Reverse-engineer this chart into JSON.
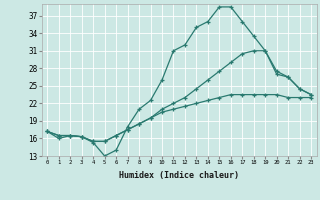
{
  "xlabel": "Humidex (Indice chaleur)",
  "ylabel": "",
  "bg_color": "#cce8e4",
  "line_color": "#2a7a70",
  "grid_color": "#ffffff",
  "xlim": [
    -0.5,
    23.5
  ],
  "ylim": [
    13,
    39
  ],
  "yticks": [
    13,
    16,
    19,
    22,
    25,
    28,
    31,
    34,
    37
  ],
  "xticks": [
    0,
    1,
    2,
    3,
    4,
    5,
    6,
    7,
    8,
    9,
    10,
    11,
    12,
    13,
    14,
    15,
    16,
    17,
    18,
    19,
    20,
    21,
    22,
    23
  ],
  "line1_x": [
    0,
    1,
    2,
    3,
    4,
    5,
    6,
    7,
    8,
    9,
    10,
    11,
    12,
    13,
    14,
    15,
    16,
    17,
    18,
    19,
    20,
    21,
    22,
    23
  ],
  "line1_y": [
    17.2,
    16.0,
    16.5,
    16.3,
    15.3,
    13.0,
    14.0,
    18.0,
    21.0,
    22.5,
    26.0,
    31.0,
    32.0,
    35.0,
    36.0,
    38.5,
    38.5,
    36.0,
    33.5,
    31.0,
    27.0,
    26.5,
    24.5,
    23.5
  ],
  "line2_x": [
    0,
    1,
    2,
    3,
    4,
    5,
    6,
    7,
    8,
    9,
    10,
    11,
    12,
    13,
    14,
    15,
    16,
    17,
    18,
    19,
    20,
    21,
    22,
    23
  ],
  "line2_y": [
    17.2,
    16.5,
    16.5,
    16.3,
    15.5,
    15.5,
    16.5,
    17.5,
    18.5,
    19.5,
    21.0,
    22.0,
    23.0,
    24.5,
    26.0,
    27.5,
    29.0,
    30.5,
    31.0,
    31.0,
    27.5,
    26.5,
    24.5,
    23.5
  ],
  "line3_x": [
    0,
    1,
    2,
    3,
    4,
    5,
    6,
    7,
    8,
    9,
    10,
    11,
    12,
    13,
    14,
    15,
    16,
    17,
    18,
    19,
    20,
    21,
    22,
    23
  ],
  "line3_y": [
    17.2,
    16.5,
    16.5,
    16.3,
    15.5,
    15.5,
    16.5,
    17.5,
    18.5,
    19.5,
    20.5,
    21.0,
    21.5,
    22.0,
    22.5,
    23.0,
    23.5,
    23.5,
    23.5,
    23.5,
    23.5,
    23.0,
    23.0,
    23.0
  ]
}
